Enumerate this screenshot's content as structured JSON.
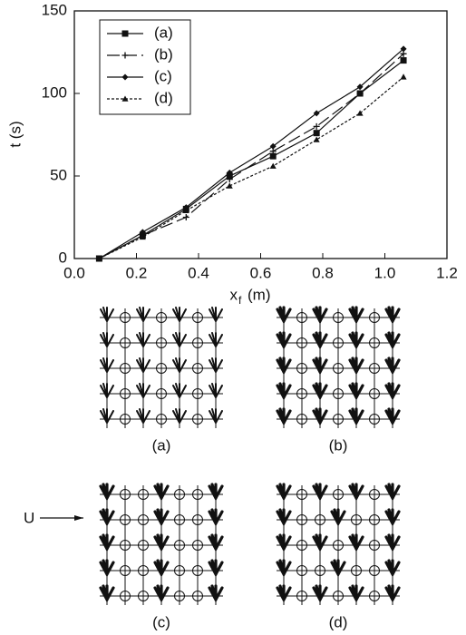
{
  "chart_data": {
    "type": "line",
    "ylabel": "t (s)",
    "xlabel": {
      "main": "x",
      "sub": "f",
      "unit": "(m)"
    },
    "x": [
      0.08,
      0.22,
      0.36,
      0.5,
      0.64,
      0.78,
      0.92,
      1.06
    ],
    "series": [
      {
        "name": "(a)",
        "color": "#111111",
        "marker": "square",
        "dash": "solid",
        "values": [
          0,
          14,
          30,
          50,
          62,
          76,
          100,
          120
        ]
      },
      {
        "name": "(b)",
        "color": "#111111",
        "marker": "plus",
        "dash": "long",
        "values": [
          0,
          14,
          25,
          48,
          65,
          80,
          100,
          124
        ]
      },
      {
        "name": "(c)",
        "color": "#111111",
        "marker": "diamond",
        "dash": "solid",
        "values": [
          0,
          16,
          31,
          52,
          68,
          88,
          104,
          127
        ]
      },
      {
        "name": "(d)",
        "color": "#111111",
        "marker": "triangle",
        "dash": "dotted",
        "values": [
          0,
          13,
          29,
          44,
          56,
          72,
          88,
          110
        ]
      }
    ],
    "xlim": [
      0,
      1.2
    ],
    "xticks": [
      {
        "value": 0,
        "label": "0.0"
      },
      0.2,
      0.4,
      0.6,
      0.8,
      {
        "value": 1,
        "label": "1.0"
      },
      1.2
    ],
    "ylim": [
      0,
      150
    ],
    "yticks": [
      0,
      50,
      100,
      150
    ],
    "legend": "upper left"
  },
  "diagram": {
    "labels": [
      "(a)",
      "(b)",
      "(c)",
      "(d)"
    ],
    "flow_label": "U"
  }
}
